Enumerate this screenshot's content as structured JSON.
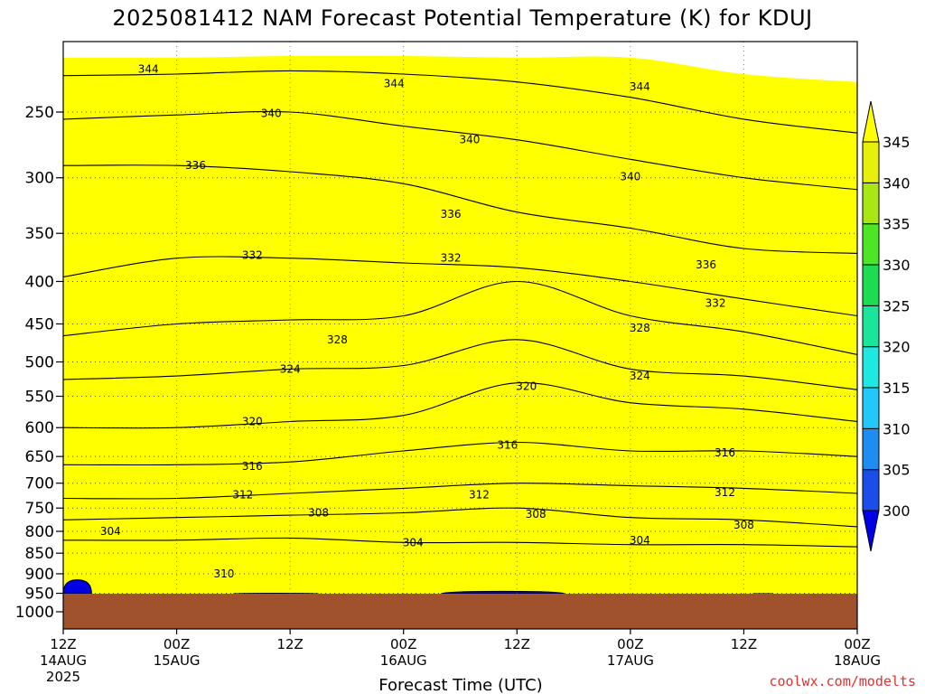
{
  "chart_data": {
    "type": "contour",
    "title": "2025081412 NAM Forecast Potential Temperature (K) for KDUJ",
    "xlabel": "Forecast Time (UTC)",
    "credit": "coolwx.com/modelts",
    "y_axis": {
      "scale": "log-pressure",
      "ticks": [
        "250",
        "300",
        "350",
        "400",
        "450",
        "500",
        "550",
        "600",
        "650",
        "700",
        "750",
        "800",
        "850",
        "900",
        "950",
        "1000"
      ]
    },
    "x_axis": {
      "hours_range": [
        0,
        84
      ],
      "ticks": [
        {
          "hour": 0,
          "time": "12Z",
          "date": "14AUG",
          "year": "2025"
        },
        {
          "hour": 12,
          "time": "00Z",
          "date": "15AUG",
          "year": ""
        },
        {
          "hour": 24,
          "time": "12Z",
          "date": "",
          "year": ""
        },
        {
          "hour": 36,
          "time": "00Z",
          "date": "16AUG",
          "year": ""
        },
        {
          "hour": 48,
          "time": "12Z",
          "date": "",
          "year": ""
        },
        {
          "hour": 60,
          "time": "00Z",
          "date": "17AUG",
          "year": ""
        },
        {
          "hour": 72,
          "time": "12Z",
          "date": "",
          "year": ""
        },
        {
          "hour": 84,
          "time": "00Z",
          "date": "18AUG",
          "year": ""
        }
      ]
    },
    "colorbar": {
      "levels": [
        "300",
        "305",
        "310",
        "315",
        "320",
        "325",
        "330",
        "335",
        "340",
        "345"
      ],
      "colors": [
        "#0000e6",
        "#1b4ee8",
        "#1e8cf0",
        "#22c8f8",
        "#1ee8e0",
        "#19e69a",
        "#1edc52",
        "#4ce624",
        "#a8e616",
        "#e6f00a",
        "#ffff00"
      ]
    },
    "grid": true,
    "ground_color": "#a0522d",
    "bands": [
      {
        "color": "#1b4ee8",
        "pressure": [
          1000,
          1000,
          1000,
          1000,
          1000,
          1000,
          1000,
          1000
        ]
      },
      {
        "color": "#1e8cf0",
        "pressure": [
          850,
          848,
          845,
          840,
          845,
          845,
          840,
          835
        ]
      },
      {
        "color": "#22c8f8",
        "pressure": [
          760,
          755,
          750,
          730,
          725,
          730,
          720,
          730
        ]
      },
      {
        "color": "#1ee8e0",
        "pressure": [
          640,
          640,
          645,
          630,
          560,
          620,
          610,
          620
        ]
      },
      {
        "color": "#19e69a",
        "pressure": [
          530,
          525,
          520,
          495,
          460,
          500,
          500,
          560
        ]
      },
      {
        "color": "#1edc52",
        "pressure": [
          380,
          375,
          380,
          380,
          360,
          370,
          400,
          405
        ]
      },
      {
        "color": "#4ce624",
        "pressure": [
          318,
          318,
          320,
          330,
          345,
          340,
          355,
          345
        ]
      },
      {
        "color": "#a8e616",
        "pressure": [
          248,
          245,
          245,
          250,
          245,
          270,
          280,
          290
        ]
      },
      {
        "color": "#e6f00a",
        "pressure": [
          222,
          222,
          220,
          222,
          225,
          235,
          240,
          240
        ]
      },
      {
        "color": "#ffff00",
        "pressure": [
          215,
          215,
          214,
          214,
          215,
          215,
          225,
          230
        ]
      }
    ],
    "contours": [
      {
        "value": 344,
        "pressure": [
          226,
          225,
          223,
          225,
          230,
          240,
          255,
          265
        ]
      },
      {
        "value": 340,
        "pressure": [
          255,
          252,
          250,
          260,
          270,
          285,
          300,
          310
        ]
      },
      {
        "value": 336,
        "pressure": [
          290,
          290,
          295,
          305,
          330,
          345,
          365,
          370
        ]
      },
      {
        "value": 332,
        "pressure": [
          395,
          375,
          375,
          380,
          385,
          400,
          420,
          440
        ]
      },
      {
        "value": 328,
        "pressure": [
          465,
          450,
          445,
          440,
          400,
          440,
          460,
          490
        ]
      },
      {
        "value": 324,
        "pressure": [
          525,
          520,
          510,
          505,
          470,
          510,
          520,
          540
        ]
      },
      {
        "value": 320,
        "pressure": [
          600,
          600,
          590,
          580,
          530,
          560,
          570,
          590
        ]
      },
      {
        "value": 316,
        "pressure": [
          665,
          665,
          660,
          640,
          625,
          640,
          640,
          650
        ]
      },
      {
        "value": 312,
        "pressure": [
          730,
          730,
          720,
          710,
          700,
          705,
          710,
          720
        ]
      },
      {
        "value": 308,
        "pressure": [
          775,
          770,
          765,
          760,
          750,
          770,
          775,
          790
        ]
      },
      {
        "value": 304,
        "pressure": [
          820,
          820,
          815,
          825,
          825,
          830,
          830,
          835
        ]
      }
    ],
    "contour_labels": [
      {
        "text": "344",
        "hour": 9,
        "pressure": 222
      },
      {
        "text": "344",
        "hour": 35,
        "pressure": 231
      },
      {
        "text": "344",
        "hour": 61,
        "pressure": 233
      },
      {
        "text": "340",
        "hour": 22,
        "pressure": 251
      },
      {
        "text": "340",
        "hour": 43,
        "pressure": 270
      },
      {
        "text": "340",
        "hour": 60,
        "pressure": 299
      },
      {
        "text": "336",
        "hour": 14,
        "pressure": 290
      },
      {
        "text": "336",
        "hour": 41,
        "pressure": 332
      },
      {
        "text": "336",
        "hour": 68,
        "pressure": 382
      },
      {
        "text": "332",
        "hour": 20,
        "pressure": 372
      },
      {
        "text": "332",
        "hour": 41,
        "pressure": 375
      },
      {
        "text": "332",
        "hour": 69,
        "pressure": 425
      },
      {
        "text": "328",
        "hour": 29,
        "pressure": 470
      },
      {
        "text": "328",
        "hour": 61,
        "pressure": 455
      },
      {
        "text": "324",
        "hour": 24,
        "pressure": 510
      },
      {
        "text": "324",
        "hour": 61,
        "pressure": 520
      },
      {
        "text": "320",
        "hour": 20,
        "pressure": 590
      },
      {
        "text": "320",
        "hour": 49,
        "pressure": 535
      },
      {
        "text": "316",
        "hour": 20,
        "pressure": 668
      },
      {
        "text": "316",
        "hour": 47,
        "pressure": 630
      },
      {
        "text": "316",
        "hour": 70,
        "pressure": 643
      },
      {
        "text": "312",
        "hour": 19,
        "pressure": 723
      },
      {
        "text": "312",
        "hour": 44,
        "pressure": 723
      },
      {
        "text": "312",
        "hour": 70,
        "pressure": 718
      },
      {
        "text": "308",
        "hour": 27,
        "pressure": 760
      },
      {
        "text": "308",
        "hour": 50,
        "pressure": 763
      },
      {
        "text": "308",
        "hour": 72,
        "pressure": 786
      },
      {
        "text": "304",
        "hour": 5,
        "pressure": 800
      },
      {
        "text": "304",
        "hour": 37,
        "pressure": 825
      },
      {
        "text": "304",
        "hour": 61,
        "pressure": 820
      },
      {
        "text": "310",
        "hour": 17,
        "pressure": 900
      }
    ],
    "low_level_pools": [
      {
        "hours": [
          0,
          3
        ],
        "top_pressure": 915
      },
      {
        "hours": [
          18,
          27
        ],
        "top_pressure": 950
      },
      {
        "hours": [
          40,
          53
        ],
        "top_pressure": 945
      },
      {
        "hours": [
          73,
          75
        ],
        "top_pressure": 955
      }
    ]
  }
}
